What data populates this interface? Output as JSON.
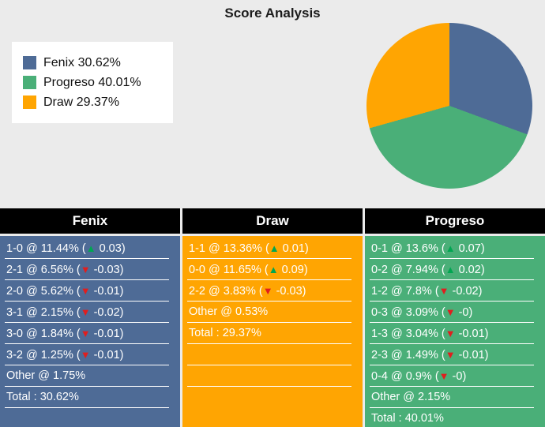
{
  "title": "Score Analysis",
  "chart_data": {
    "type": "pie",
    "title": "Score Analysis",
    "labels": [
      "Fenix",
      "Progreso",
      "Draw"
    ],
    "values": [
      30.62,
      40.01,
      29.37
    ],
    "colors": [
      "#4e6b96",
      "#4aaf78",
      "#ffa502"
    ],
    "start_angle_deg": 0,
    "direction": "clockwise",
    "legend_position": "left"
  },
  "legend": {
    "items": [
      {
        "label": "Fenix 30.62%",
        "color": "#4e6b96"
      },
      {
        "label": "Progreso 40.01%",
        "color": "#4aaf78"
      },
      {
        "label": "Draw 29.37%",
        "color": "#ffa502"
      }
    ]
  },
  "icons": {
    "up_arrow": "▲",
    "down_arrow": "▼"
  },
  "format": {
    "open": " (",
    "close": ")"
  },
  "arrow_colors": {
    "up": "#00a651",
    "down": "#e01e1e"
  },
  "tables": [
    {
      "header": "Fenix",
      "bg": "#4e6b96",
      "rows": [
        {
          "score": "1-0 @ 11.44%",
          "dir": "up",
          "delta": "0.03"
        },
        {
          "score": "2-1 @ 6.56%",
          "dir": "down",
          "delta": "-0.03"
        },
        {
          "score": "2-0 @ 5.62%",
          "dir": "down",
          "delta": "-0.01"
        },
        {
          "score": "3-1 @ 2.15%",
          "dir": "down",
          "delta": "-0.02"
        },
        {
          "score": "3-0 @ 1.84%",
          "dir": "down",
          "delta": "-0.01"
        },
        {
          "score": "3-2 @ 1.25%",
          "dir": "down",
          "delta": "-0.01"
        },
        {
          "score": "Other @ 1.75%"
        },
        {
          "score": "Total : 30.62%"
        }
      ]
    },
    {
      "header": "Draw",
      "bg": "#ffa502",
      "rows": [
        {
          "score": "1-1 @ 13.36%",
          "dir": "up",
          "delta": "0.01"
        },
        {
          "score": "0-0 @ 11.65%",
          "dir": "up",
          "delta": "0.09"
        },
        {
          "score": "2-2 @ 3.83%",
          "dir": "down",
          "delta": "-0.03"
        },
        {
          "score": "Other @ 0.53%"
        },
        {
          "score": "Total : 29.37%"
        },
        {
          "score": ""
        },
        {
          "score": ""
        }
      ]
    },
    {
      "header": "Progreso",
      "bg": "#4aaf78",
      "rows": [
        {
          "score": "0-1 @ 13.6%",
          "dir": "up",
          "delta": "0.07"
        },
        {
          "score": "0-2 @ 7.94%",
          "dir": "up",
          "delta": "0.02"
        },
        {
          "score": "1-2 @ 7.8%",
          "dir": "down",
          "delta": "-0.02"
        },
        {
          "score": "0-3 @ 3.09%",
          "dir": "down",
          "delta": "-0"
        },
        {
          "score": "1-3 @ 3.04%",
          "dir": "down",
          "delta": "-0.01"
        },
        {
          "score": "2-3 @ 1.49%",
          "dir": "down",
          "delta": "-0.01"
        },
        {
          "score": "0-4 @ 0.9%",
          "dir": "down",
          "delta": "-0"
        },
        {
          "score": "Other @ 2.15%"
        },
        {
          "score": "Total : 40.01%"
        }
      ]
    }
  ]
}
